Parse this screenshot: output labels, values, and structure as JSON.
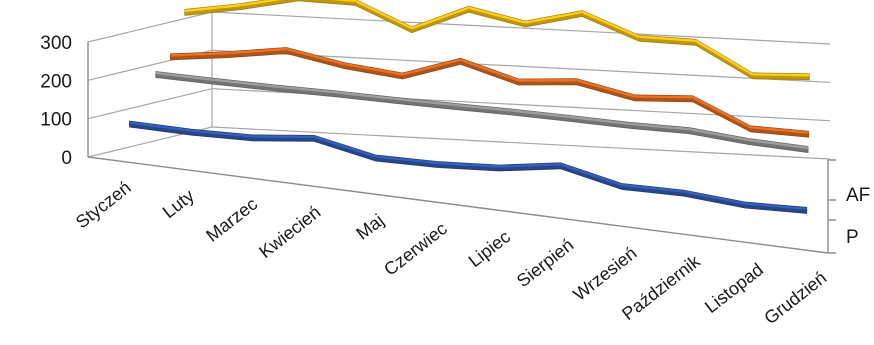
{
  "chart_data": {
    "type": "line",
    "style": "3d-line",
    "categories": [
      "Styczeń",
      "Luty",
      "Marzec",
      "Kwiecień",
      "Maj",
      "Czerwiec",
      "Lipiec",
      "Sierpień",
      "Wrzesień",
      "Październik",
      "Listopad",
      "Grudzień"
    ],
    "ylim": [
      0,
      300
    ],
    "yticks": [
      0,
      100,
      200,
      300
    ],
    "grid": true,
    "depth_labels": [
      "AF",
      "P"
    ],
    "series": [
      {
        "values": [
          40,
          38,
          42,
          60,
          28,
          30,
          40,
          65,
          30,
          32,
          20,
          25
        ],
        "color": "#2e55a6"
      },
      {
        "values": [
          85,
          83,
          82,
          83,
          82,
          82,
          83,
          82,
          80,
          82,
          70,
          65
        ],
        "color": "#8c8c8c"
      },
      {
        "values": [
          85,
          105,
          130,
          105,
          92,
          145,
          105,
          120,
          92,
          104,
          40,
          40
        ],
        "color": "#d3661f"
      },
      {
        "values": [
          155,
          183,
          218,
          219,
          160,
          226,
          200,
          240,
          188,
          190,
          115,
          125
        ],
        "color": "#e8b816"
      }
    ]
  }
}
